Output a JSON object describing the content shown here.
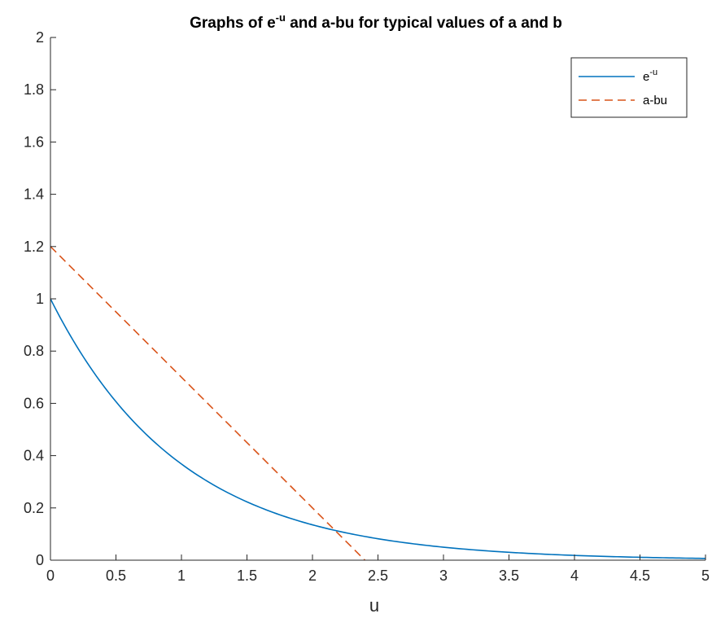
{
  "chart_data": {
    "type": "line",
    "title": {
      "prefix": "Graphs of e",
      "superscript": "-u",
      "suffix": " and a-bu for typical values of a and b"
    },
    "xlabel": "u",
    "ylabel": "",
    "xlim": [
      0,
      5
    ],
    "ylim": [
      0,
      2
    ],
    "xticks": [
      0,
      0.5,
      1,
      1.5,
      2,
      2.5,
      3,
      3.5,
      4,
      4.5,
      5
    ],
    "xtick_labels": [
      "0",
      "0.5",
      "1",
      "1.5",
      "2",
      "2.5",
      "3",
      "3.5",
      "4",
      "4.5",
      "5"
    ],
    "yticks": [
      0,
      0.2,
      0.4,
      0.6,
      0.8,
      1,
      1.2,
      1.4,
      1.6,
      1.8,
      2
    ],
    "ytick_labels": [
      "0",
      "0.2",
      "0.4",
      "0.6",
      "0.8",
      "1",
      "1.2",
      "1.4",
      "1.6",
      "1.8",
      "2"
    ],
    "grid": false,
    "legend_position": "top-right",
    "series": [
      {
        "label_base": "e",
        "label_superscript": "-u",
        "style": "solid",
        "color": "#0072BD",
        "x": [
          0,
          0.25,
          0.5,
          0.75,
          1,
          1.25,
          1.5,
          1.75,
          2,
          2.25,
          2.5,
          2.75,
          3,
          3.25,
          3.5,
          3.75,
          4,
          4.25,
          4.5,
          4.75,
          5
        ],
        "y": [
          1,
          0.779,
          0.607,
          0.472,
          0.368,
          0.287,
          0.223,
          0.174,
          0.135,
          0.105,
          0.082,
          0.064,
          0.05,
          0.039,
          0.03,
          0.024,
          0.018,
          0.014,
          0.011,
          0.009,
          0.007
        ]
      },
      {
        "label_base": "a-bu",
        "label_superscript": "",
        "style": "dashed",
        "color": "#D95319",
        "x": [
          0,
          2.4
        ],
        "y": [
          1.2,
          0
        ]
      }
    ]
  }
}
